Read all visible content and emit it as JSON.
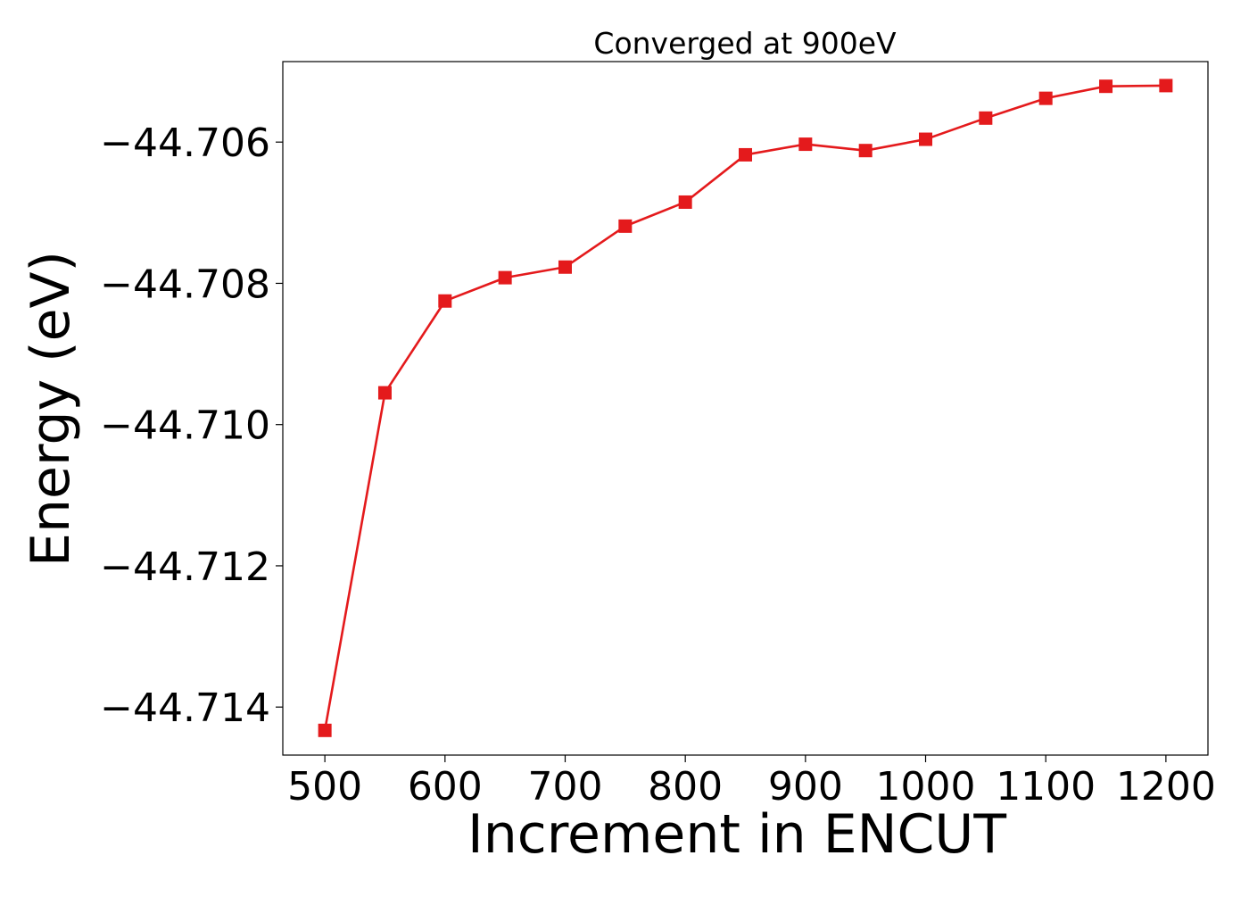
{
  "chart_data": {
    "type": "line",
    "title": "Converged at 900eV",
    "xlabel": "Increment in ENCUT",
    "ylabel": "Energy (eV)",
    "x": [
      500,
      550,
      600,
      650,
      700,
      750,
      800,
      850,
      900,
      950,
      1000,
      1050,
      1100,
      1150,
      1200
    ],
    "series": [
      {
        "values": [
          -44.71433,
          -44.70955,
          -44.70825,
          -44.70792,
          -44.70777,
          -44.70719,
          -44.70685,
          -44.70618,
          -44.70603,
          -44.70612,
          -44.70596,
          -44.70566,
          -44.70538,
          -44.70521,
          -44.7052
        ],
        "color": "#e41a1c",
        "marker": "square"
      }
    ],
    "xticks": [
      500,
      600,
      700,
      800,
      900,
      1000,
      1100,
      1200
    ],
    "xtick_labels": [
      "500",
      "600",
      "700",
      "800",
      "900",
      "1000",
      "1100",
      "1200"
    ],
    "yticks": [
      -44.706,
      -44.708,
      -44.71,
      -44.712,
      -44.714
    ],
    "ytick_labels": [
      "−44.706",
      "−44.708",
      "−44.710",
      "−44.712",
      "−44.714"
    ],
    "xlim": [
      465,
      1235
    ],
    "ylim": [
      -44.71468,
      -44.70486
    ],
    "grid": false,
    "legend": "none"
  }
}
